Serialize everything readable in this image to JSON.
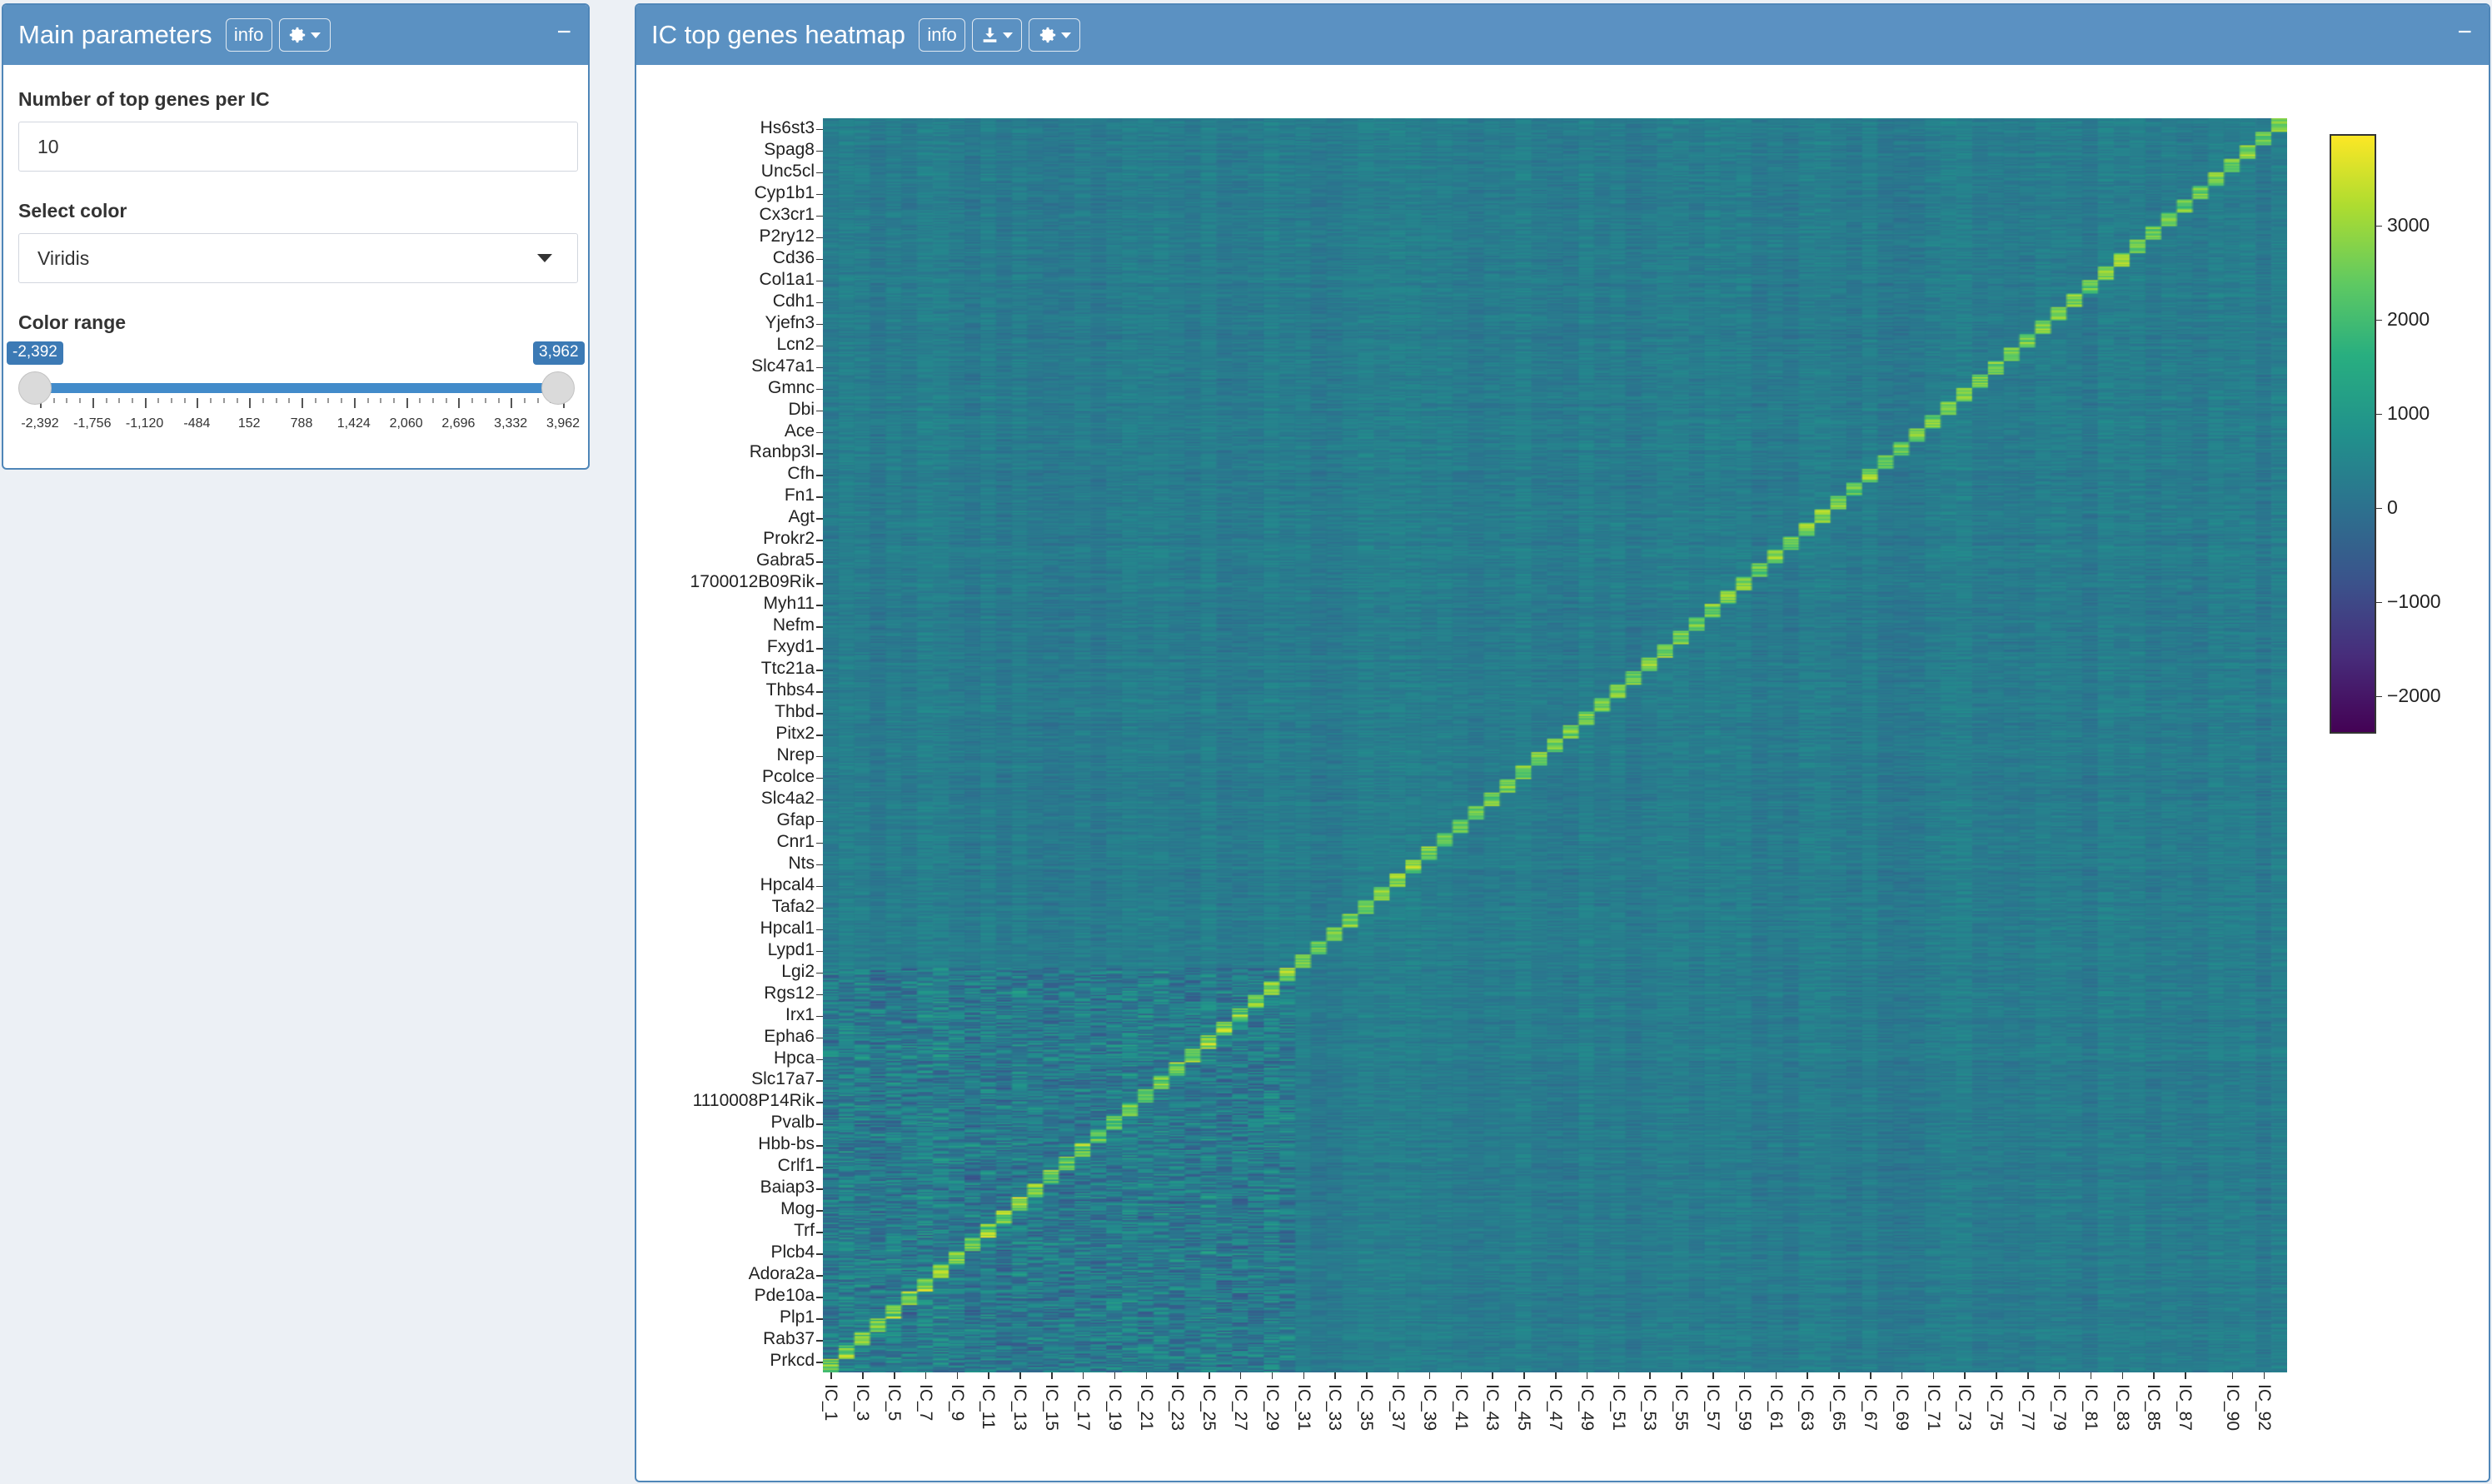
{
  "main_panel": {
    "title": "Main parameters",
    "info_label": "info",
    "collapse_label": "−",
    "top_genes": {
      "label": "Number of top genes per IC",
      "value": "10"
    },
    "color": {
      "label": "Select color",
      "value": "Viridis"
    },
    "range": {
      "label": "Color range",
      "min_value": "-2,392",
      "max_value": "3,962",
      "low_fraction": 0.0,
      "high_fraction": 1.0,
      "ticks": [
        "-2,392",
        "-1,756",
        "-1,120",
        "-484",
        "152",
        "788",
        "1,424",
        "2,060",
        "2,696",
        "3,332",
        "3,962"
      ]
    }
  },
  "heatmap_panel": {
    "title": "IC top genes heatmap",
    "info_label": "info",
    "collapse_label": "−"
  },
  "chart_data": {
    "type": "heatmap",
    "colorscale": "Viridis",
    "colors": [
      "#440154",
      "#3b528b",
      "#21918c",
      "#5ec962",
      "#fde725"
    ],
    "zlim": [
      -2392,
      3962
    ],
    "colorbar_ticks": [
      {
        "label": "3000",
        "value": 3000
      },
      {
        "label": "2000",
        "value": 2000
      },
      {
        "label": "1000",
        "value": 1000
      },
      {
        "label": "0",
        "value": 0
      },
      {
        "label": "−1000",
        "value": -1000
      },
      {
        "label": "−2000",
        "value": -2000
      }
    ],
    "n_columns": 93,
    "n_rows": 930,
    "x_tick_labels": [
      "IC_1",
      "IC_3",
      "IC_5",
      "IC_7",
      "IC_9",
      "IC_11",
      "IC_13",
      "IC_15",
      "IC_17",
      "IC_19",
      "IC_21",
      "IC_23",
      "IC_25",
      "IC_27",
      "IC_29",
      "IC_31",
      "IC_33",
      "IC_35",
      "IC_37",
      "IC_39",
      "IC_41",
      "IC_43",
      "IC_45",
      "IC_47",
      "IC_49",
      "IC_51",
      "IC_53",
      "IC_55",
      "IC_57",
      "IC_59",
      "IC_61",
      "IC_63",
      "IC_65",
      "IC_67",
      "IC_69",
      "IC_71",
      "IC_73",
      "IC_75",
      "IC_77",
      "IC_79",
      "IC_81",
      "IC_83",
      "IC_85",
      "IC_87",
      "IC_90",
      "IC_92"
    ],
    "y_tick_labels": [
      "Prkcd",
      "Rab37",
      "Plp1",
      "Pde10a",
      "Adora2a",
      "Plcb4",
      "Trf",
      "Mog",
      "Baiap3",
      "Crlf1",
      "Hbb-bs",
      "Pvalb",
      "1110008P14Rik",
      "Slc17a7",
      "Hpca",
      "Epha6",
      "Irx1",
      "Rgs12",
      "Lgi2",
      "Lypd1",
      "Hpcal1",
      "Tafa2",
      "Hpcal4",
      "Nts",
      "Cnr1",
      "Gfap",
      "Slc4a2",
      "Pcolce",
      "Nrep",
      "Pitx2",
      "Thbd",
      "Thbs4",
      "Ttc21a",
      "Fxyd1",
      "Nefm",
      "Myh11",
      "1700012B09Rik",
      "Gabra5",
      "Prokr2",
      "Agt",
      "Fn1",
      "Cfh",
      "Ranbp3l",
      "Ace",
      "Dbi",
      "Gmnc",
      "Slc47a1",
      "Lcn2",
      "Yjefn3",
      "Cdh1",
      "Col1a1",
      "Cd36",
      "P2ry12",
      "Cx3cr1",
      "Cyp1b1",
      "Unc5cl",
      "Spag8",
      "Hs6st3"
    ]
  }
}
